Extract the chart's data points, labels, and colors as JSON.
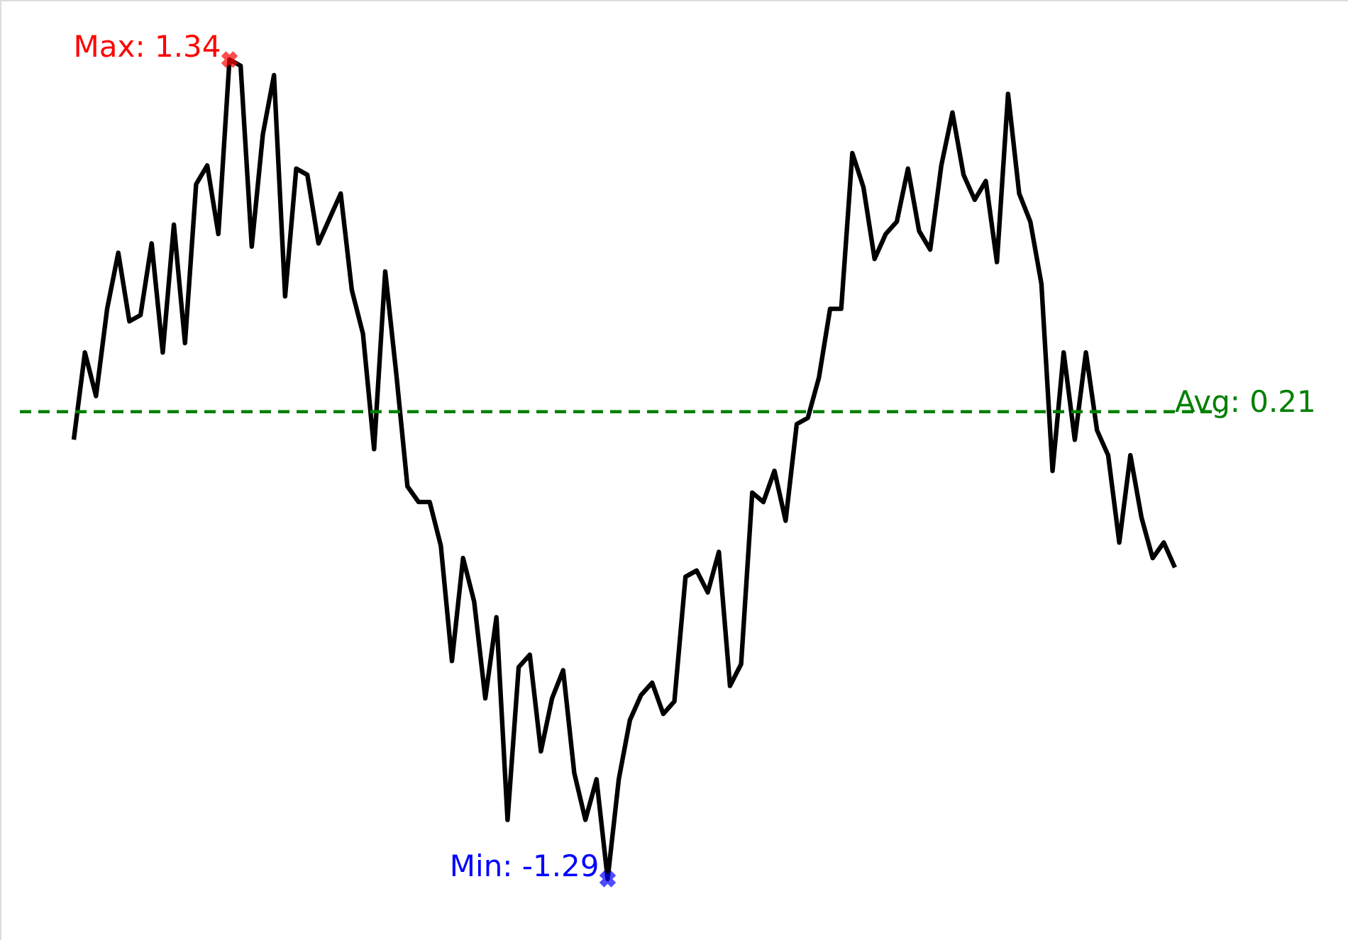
{
  "chart_data": {
    "type": "line",
    "categories": [
      null,
      null,
      null,
      null,
      null,
      null,
      null,
      null,
      null,
      null,
      null,
      null,
      null,
      null,
      null,
      null,
      null,
      null,
      null,
      null,
      null,
      null,
      null,
      null,
      null,
      null,
      null,
      null,
      null,
      null,
      null,
      null,
      null,
      null,
      null,
      null,
      null,
      null,
      null,
      null,
      null,
      null,
      null,
      null,
      null,
      null,
      null,
      null,
      null,
      null,
      null,
      null,
      null,
      null,
      null,
      null,
      null,
      null,
      null,
      null,
      null,
      null,
      null,
      null,
      null,
      null,
      null,
      null,
      null,
      null,
      null,
      null,
      null,
      null,
      null,
      null,
      null,
      null,
      null,
      null,
      null,
      null,
      null,
      null,
      null,
      null,
      null,
      null,
      null,
      null,
      null,
      null,
      null,
      null,
      null,
      null,
      null,
      null,
      null,
      null
    ],
    "series": [
      {
        "color": "#000000",
        "values": [
          0.12,
          0.4,
          0.26,
          0.54,
          0.72,
          0.5,
          0.52,
          0.75,
          0.4,
          0.81,
          0.43,
          0.94,
          1.0,
          0.78,
          1.34,
          1.32,
          0.74,
          1.1,
          1.29,
          0.58,
          0.99,
          0.97,
          0.75,
          0.83,
          0.91,
          0.6,
          0.46,
          0.09,
          0.66,
          0.33,
          -0.03,
          -0.08,
          -0.08,
          -0.22,
          -0.59,
          -0.26,
          -0.4,
          -0.71,
          -0.45,
          -1.1,
          -0.61,
          -0.57,
          -0.88,
          -0.71,
          -0.62,
          -0.95,
          -1.1,
          -0.97,
          -1.29,
          -0.97,
          -0.78,
          -0.7,
          -0.66,
          -0.76,
          -0.72,
          -0.32,
          -0.3,
          -0.37,
          -0.24,
          -0.67,
          -0.6,
          -0.05,
          -0.08,
          0.02,
          -0.14,
          0.17,
          0.19,
          0.32,
          0.54,
          0.54,
          1.04,
          0.93,
          0.7,
          0.78,
          0.82,
          0.99,
          0.79,
          0.73,
          1.0,
          1.17,
          0.97,
          0.89,
          0.95,
          0.69,
          1.23,
          0.91,
          0.82,
          0.62,
          0.02,
          0.4,
          0.12,
          0.4,
          0.15,
          0.07,
          -0.21,
          0.07,
          -0.13,
          -0.26,
          -0.21,
          -0.29
        ],
        "value_labels": [
          null,
          null,
          null,
          null,
          null,
          null,
          null,
          null,
          null,
          null,
          null,
          null,
          null,
          null,
          "Max: 1.34",
          null,
          null,
          null,
          null,
          null,
          null,
          null,
          null,
          null,
          null,
          null,
          null,
          null,
          null,
          null,
          null,
          null,
          null,
          null,
          null,
          null,
          null,
          null,
          null,
          null,
          null,
          null,
          null,
          null,
          null,
          null,
          null,
          null,
          "Min: -1.29",
          null,
          null,
          null,
          null,
          null,
          null,
          null,
          null,
          null,
          null,
          null,
          null,
          null,
          null,
          null,
          null,
          null,
          null,
          null,
          null,
          null,
          null,
          null,
          null,
          null,
          null,
          null,
          null,
          null,
          null,
          null,
          null,
          null,
          null,
          null,
          null,
          null,
          null,
          null,
          null,
          null,
          null,
          null,
          null,
          null,
          null,
          null,
          null,
          null,
          null,
          null
        ]
      }
    ],
    "ref_lines": [
      {
        "axis": "y",
        "value": 0.21,
        "label": "Avg: 0.21",
        "color": "#008000",
        "line_style": "dashed"
      }
    ],
    "line_style": "solid",
    "marker": "none"
  }
}
